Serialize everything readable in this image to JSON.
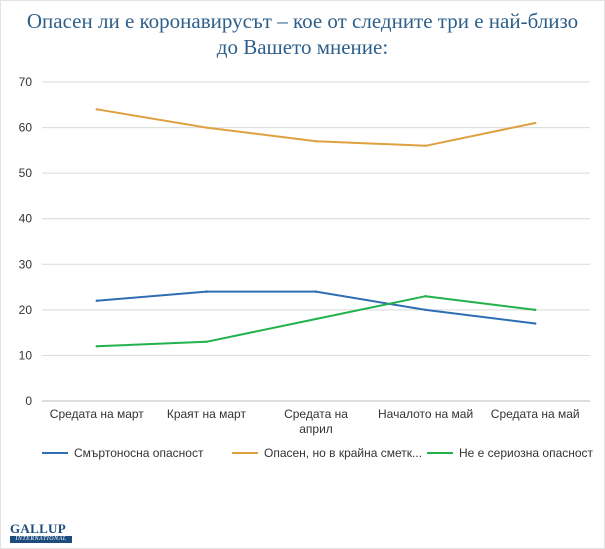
{
  "title_lines": [
    "Опасен ли е коронавирусът – кое от следните три е най-близо",
    "до Вашето мнение:"
  ],
  "colors": {
    "title": "#2e5f8a",
    "grid": "#d9d9d9",
    "series": [
      "#2f6db5",
      "#e0a040",
      "#22b14c"
    ]
  },
  "logo": {
    "main": "GALLUP",
    "sub": "INTERNATIONAL"
  },
  "chart_data": {
    "type": "line",
    "title": "Опасен ли е коронавирусът – кое от следните три е най-близо до Вашето мнение:",
    "categories": [
      [
        "Средата на март"
      ],
      [
        "Краят на март"
      ],
      [
        "Средата на",
        "април"
      ],
      [
        "Началото на май"
      ],
      [
        "Средата на май"
      ]
    ],
    "ylim": [
      0,
      70
    ],
    "yticks": [
      0,
      10,
      20,
      30,
      40,
      50,
      60,
      70
    ],
    "grid": true,
    "legend_position": "bottom",
    "series": [
      {
        "name": "Смъртоносна опасност",
        "values": [
          22,
          24,
          24,
          20,
          17
        ]
      },
      {
        "name": "Опасен, но в крайна сметк...",
        "values": [
          64,
          60,
          57,
          56,
          61
        ]
      },
      {
        "name": "Не е сериозна опасност",
        "values": [
          12,
          13,
          18,
          23,
          20
        ]
      }
    ]
  }
}
